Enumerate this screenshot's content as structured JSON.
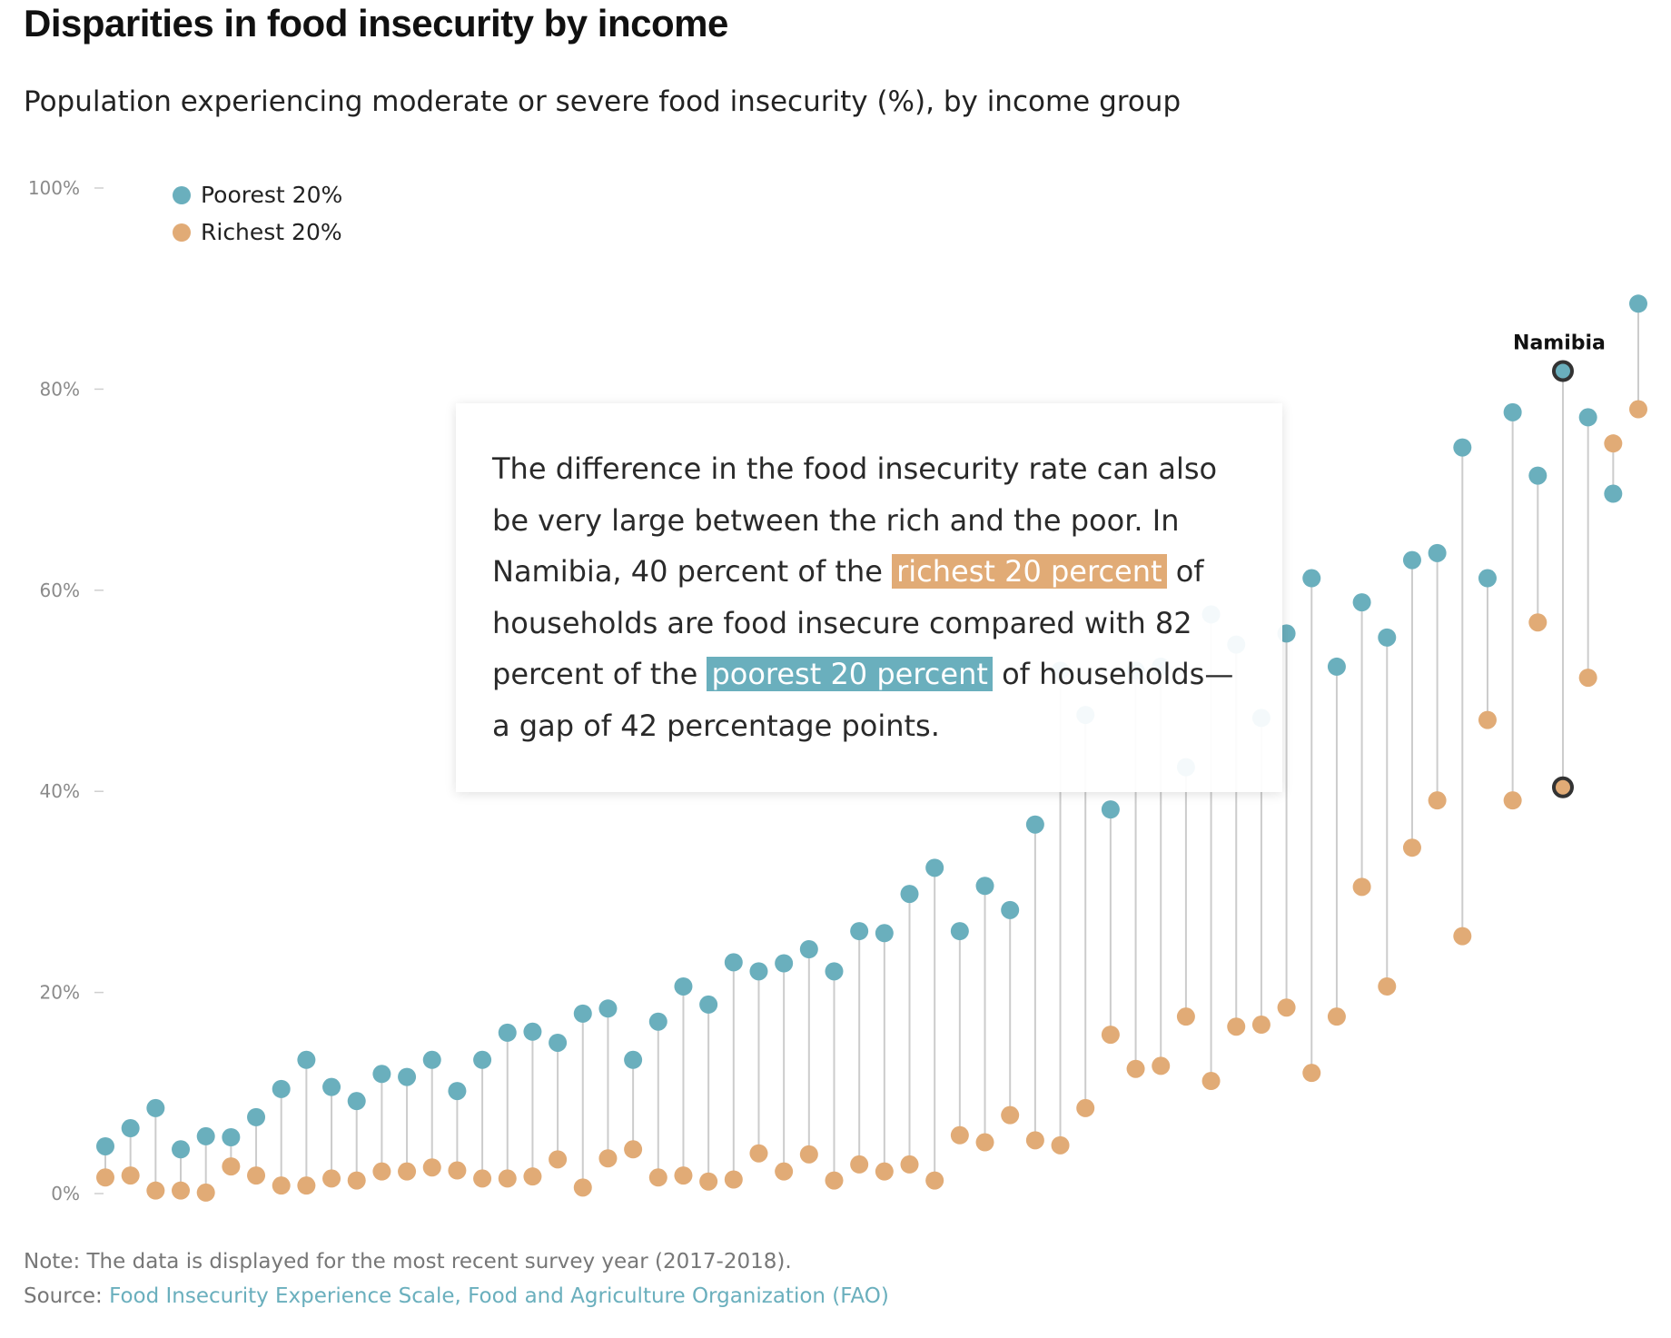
{
  "title": "Disparities in food insecurity by income",
  "subtitle": "Population experiencing moderate or severe food insecurity (%), by income group",
  "callout": {
    "text_1": "The difference in the food insecurity rate can also be very large between the rich and the poor. In Namibia, 40 percent of the ",
    "highlight_rich": "richest 20 percent",
    "text_2": " of households are food insecure compared with 82 percent of the ",
    "highlight_poor": "poorest 20 percent",
    "text_3": " of households—a gap of 42 percentage points."
  },
  "note": "Note: The data is displayed for the most recent survey year (2017-2018).",
  "source_prefix": "Source: ",
  "source_link": "Food Insecurity Experience Scale, Food and Agriculture Organization (FAO)",
  "colors": {
    "poorest": "#6aafbd",
    "richest": "#e1ab76",
    "stem": "#cccccc",
    "highlight_stroke": "#333333"
  },
  "chart_data": {
    "type": "scatter",
    "subtype": "dumbbell",
    "ylim": [
      0,
      100
    ],
    "yticks": [
      "0%",
      "20%",
      "40%",
      "60%",
      "80%",
      "100%"
    ],
    "legend": {
      "placement": "top-left",
      "entries": [
        "Poorest 20%",
        "Richest 20%"
      ]
    },
    "series": [
      {
        "name": "Poorest 20%",
        "values": [
          4.7,
          6.5,
          8.5,
          4.4,
          5.7,
          5.6,
          7.6,
          10.4,
          13.3,
          10.6,
          9.2,
          11.9,
          11.6,
          13.3,
          10.2,
          13.3,
          16.0,
          16.1,
          15.0,
          17.9,
          18.4,
          13.3,
          17.1,
          20.6,
          18.8,
          23.0,
          22.1,
          22.9,
          24.3,
          22.1,
          26.1,
          25.9,
          29.8,
          32.4,
          26.1,
          30.6,
          28.2,
          36.7,
          52.0,
          47.6,
          38.2,
          52.0,
          52.4,
          42.4,
          57.6,
          54.6,
          47.3,
          55.7,
          61.2,
          52.4,
          58.8,
          55.3,
          63.0,
          63.7,
          74.2,
          61.2,
          77.7,
          71.4,
          81.8,
          77.2,
          69.6,
          88.5
        ]
      },
      {
        "name": "Richest 20%",
        "values": [
          1.6,
          1.8,
          0.3,
          0.3,
          0.1,
          2.7,
          1.8,
          0.8,
          0.8,
          1.5,
          1.3,
          2.2,
          2.2,
          2.6,
          2.3,
          1.5,
          1.5,
          1.7,
          3.4,
          0.6,
          3.5,
          4.4,
          1.6,
          1.8,
          1.2,
          1.4,
          4.0,
          2.2,
          3.9,
          1.3,
          2.9,
          2.2,
          2.9,
          1.3,
          5.8,
          5.1,
          7.8,
          5.3,
          4.8,
          8.5,
          15.8,
          12.4,
          12.7,
          17.6,
          11.2,
          16.6,
          16.8,
          18.5,
          12.0,
          17.6,
          30.5,
          20.6,
          34.4,
          39.1,
          25.6,
          47.1,
          39.1,
          56.8,
          40.4,
          51.3,
          74.6,
          78.0
        ]
      }
    ],
    "annotations": [
      {
        "label": "Namibia",
        "index": 58
      }
    ]
  }
}
